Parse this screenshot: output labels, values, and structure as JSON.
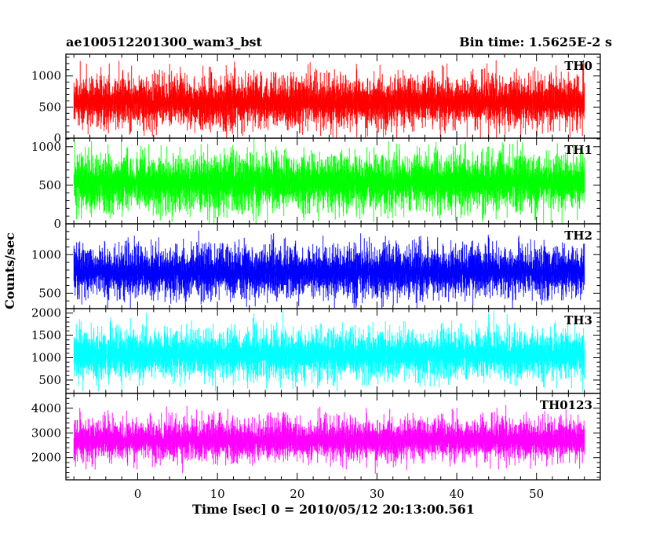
{
  "header": {
    "left_title": "ae100512201300_wam3_bst",
    "right_title": "Bin time: 1.5625E-2 s"
  },
  "chart_data": {
    "type": "line",
    "title": "ae100512201300_wam3_bst",
    "subtitle": "Bin time: 1.5625E-2 s",
    "xlabel": "Time [sec] 0 = 2010/05/12 20:13:00.561",
    "ylabel": "Counts/sec",
    "xlim": [
      -9,
      58
    ],
    "data_xrange": [
      -8,
      56
    ],
    "x_ticks": [
      0,
      10,
      20,
      30,
      40,
      50
    ],
    "x_tick_labels": [
      "0",
      "10",
      "20",
      "30",
      "40",
      "50"
    ],
    "grid": false,
    "panels": [
      {
        "name": "TH0",
        "color": "#ff0000",
        "ylim": [
          0,
          1350
        ],
        "y_ticks": [
          0,
          500,
          1000
        ],
        "y_tick_labels": [
          "0",
          "500",
          "1000"
        ],
        "minor_step": 100,
        "band": {
          "median": 580,
          "low": 120,
          "high": 1050,
          "min": 0,
          "max": 1350
        }
      },
      {
        "name": "TH1",
        "color": "#00ff00",
        "ylim": [
          0,
          1110
        ],
        "y_ticks": [
          0,
          500,
          1000
        ],
        "y_tick_labels": [
          "0",
          "500",
          "1000"
        ],
        "minor_step": 100,
        "band": {
          "median": 540,
          "low": 120,
          "high": 960,
          "min": 0,
          "max": 1110
        }
      },
      {
        "name": "TH2",
        "color": "#0000ff",
        "ylim": [
          300,
          1400
        ],
        "y_ticks": [
          500,
          1000
        ],
        "y_tick_labels": [
          "500",
          "1000"
        ],
        "minor_step": 100,
        "band": {
          "median": 770,
          "low": 420,
          "high": 1150,
          "min": 300,
          "max": 1400
        }
      },
      {
        "name": "TH3",
        "color": "#00ffff",
        "ylim": [
          200,
          2100
        ],
        "y_ticks": [
          500,
          1000,
          1500,
          2000
        ],
        "y_tick_labels": [
          "500",
          "1000",
          "1500",
          "2000"
        ],
        "minor_step": 100,
        "band": {
          "median": 1070,
          "low": 480,
          "high": 1700,
          "min": 250,
          "max": 2100
        }
      },
      {
        "name": "TH0123",
        "color": "#ff00ff",
        "ylim": [
          1100,
          4600
        ],
        "y_ticks": [
          2000,
          3000,
          4000
        ],
        "y_tick_labels": [
          "2000",
          "3000",
          "4000"
        ],
        "minor_step": 200,
        "band": {
          "median": 2700,
          "low": 1800,
          "high": 3700,
          "min": 1100,
          "max": 4500
        }
      }
    ]
  }
}
